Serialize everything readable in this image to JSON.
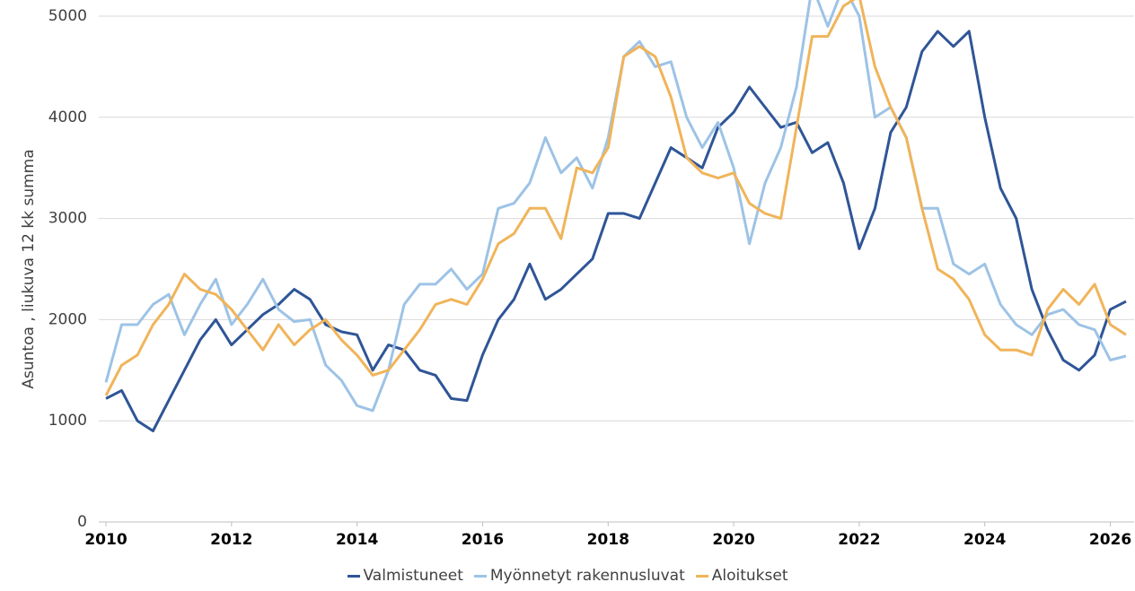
{
  "chart_data": {
    "type": "line",
    "y_label": "Asuntoa , liukuva 12 kk summa",
    "x": [
      2010,
      2010.25,
      2010.5,
      2010.75,
      2011,
      2011.25,
      2011.5,
      2011.75,
      2012,
      2012.25,
      2012.5,
      2012.75,
      2013,
      2013.25,
      2013.5,
      2013.75,
      2014,
      2014.25,
      2014.5,
      2014.75,
      2015,
      2015.25,
      2015.5,
      2015.75,
      2016,
      2016.25,
      2016.5,
      2016.75,
      2017,
      2017.25,
      2017.5,
      2017.75,
      2018,
      2018.25,
      2018.5,
      2018.75,
      2019,
      2019.25,
      2019.5,
      2019.75,
      2020,
      2020.25,
      2020.5,
      2020.75,
      2021,
      2021.25,
      2021.5,
      2021.75,
      2022,
      2022.25,
      2022.5,
      2022.75,
      2023,
      2023.25,
      2023.5,
      2023.75,
      2024,
      2024.25,
      2024.5,
      2024.75,
      2025,
      2025.25,
      2025.5,
      2025.75,
      2026,
      2026.25
    ],
    "series": [
      {
        "name": "Valmistuneet",
        "color": "#2f5597",
        "values": [
          1220,
          1300,
          1000,
          900,
          1200,
          1500,
          1800,
          2000,
          1750,
          1900,
          2050,
          2150,
          2300,
          2200,
          1950,
          1880,
          1850,
          1500,
          1750,
          1700,
          1500,
          1450,
          1220,
          1200,
          1650,
          2000,
          2200,
          2550,
          2200,
          2300,
          2450,
          2600,
          3050,
          3050,
          3000,
          3350,
          3700,
          3600,
          3500,
          3900,
          4050,
          4300,
          4100,
          3900,
          3950,
          3650,
          3750,
          3350,
          2700,
          3100,
          3850,
          4100,
          4650,
          4850,
          4700,
          4850,
          4000,
          3300,
          3000,
          2300,
          1900,
          1600,
          1500,
          1650,
          2100,
          2180
        ]
      },
      {
        "name": "Myönnetyt rakennusluvat",
        "color": "#9dc3e6",
        "values": [
          1380,
          1950,
          1950,
          2150,
          2250,
          1850,
          2150,
          2400,
          1950,
          2150,
          2400,
          2100,
          1980,
          2000,
          1550,
          1400,
          1150,
          1100,
          1500,
          2150,
          2350,
          2350,
          2500,
          2300,
          2450,
          3100,
          3150,
          3350,
          3800,
          3450,
          3600,
          3300,
          3800,
          4600,
          4750,
          4500,
          4550,
          4000,
          3700,
          3950,
          3500,
          2750,
          3350,
          3700,
          4300,
          5300,
          4900,
          5300,
          5000,
          4000,
          4100,
          3800,
          3100,
          3100,
          2550,
          2450,
          2550,
          2150,
          1950,
          1850,
          2050,
          2100,
          1950,
          1900,
          1600,
          1640
        ]
      },
      {
        "name": "Aloitukset",
        "color": "#f0b45a",
        "values": [
          1250,
          1550,
          1650,
          1950,
          2150,
          2450,
          2300,
          2250,
          2100,
          1900,
          1700,
          1950,
          1750,
          1900,
          2000,
          1800,
          1650,
          1450,
          1500,
          1700,
          1900,
          2150,
          2200,
          2150,
          2400,
          2750,
          2850,
          3100,
          3100,
          2800,
          3500,
          3450,
          3700,
          4600,
          4700,
          4600,
          4200,
          3600,
          3450,
          3400,
          3450,
          3150,
          3050,
          3000,
          3900,
          4800,
          4800,
          5100,
          5200,
          4500,
          4100,
          3800,
          3100,
          2500,
          2400,
          2200,
          1850,
          1700,
          1700,
          1650,
          2100,
          2300,
          2150,
          2350,
          1950,
          1850
        ]
      }
    ],
    "xlim": [
      2010,
      2026.35
    ],
    "xticks": [
      2010,
      2012,
      2014,
      2016,
      2018,
      2020,
      2022,
      2024,
      2026
    ],
    "ylim": [
      0,
      5000
    ],
    "yticks": [
      0,
      1000,
      2000,
      3000,
      4000,
      5000
    ],
    "grid": true,
    "legend": "bottom"
  }
}
